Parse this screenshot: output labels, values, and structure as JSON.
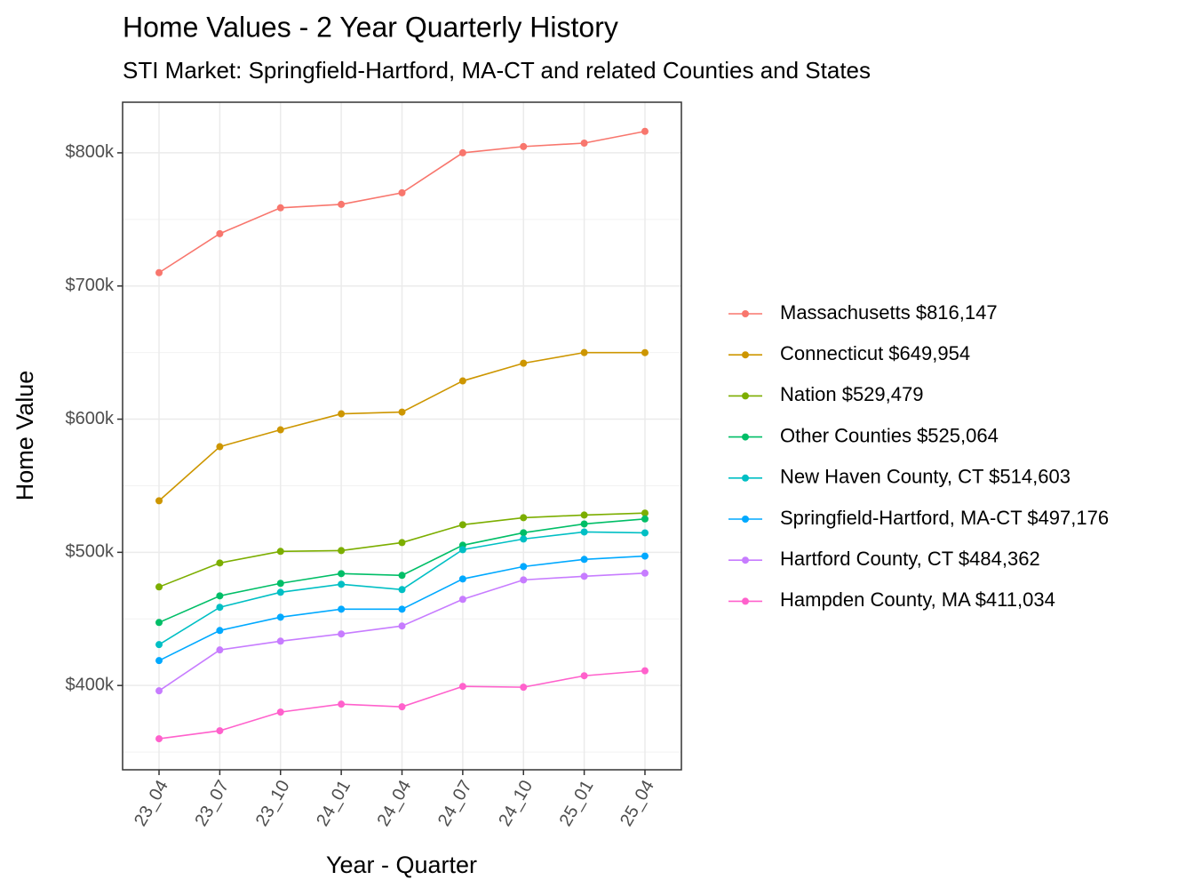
{
  "chart_data": {
    "type": "line",
    "title": "Home Values - 2 Year Quarterly History",
    "subtitle": "STI Market: Springfield-Hartford, MA-CT and related Counties and States",
    "x_label": "Year - Quarter",
    "y_label": "Home Value",
    "categories": [
      "23_04",
      "23_07",
      "23_10",
      "24_01",
      "24_04",
      "24_07",
      "24_10",
      "25_01",
      "25_04"
    ],
    "ylim": [
      336700,
      838000
    ],
    "yticks": [
      {
        "value": 400000,
        "label": "$400k"
      },
      {
        "value": 500000,
        "label": "$500k"
      },
      {
        "value": 600000,
        "label": "$600k"
      },
      {
        "value": 700000,
        "label": "$700k"
      },
      {
        "value": 800000,
        "label": "$800k"
      }
    ],
    "minor_yticks": [
      350000,
      450000,
      550000,
      650000,
      750000
    ],
    "grid": true,
    "legend": "right",
    "series": [
      {
        "name": "Massachusetts $816,147",
        "color": "#F8766D",
        "values": [
          710000,
          739300,
          758700,
          761300,
          770000,
          800000,
          804700,
          807300,
          816147
        ]
      },
      {
        "name": "Connecticut $649,954",
        "color": "#CD9600",
        "values": [
          538700,
          579300,
          592000,
          604000,
          605300,
          628700,
          642000,
          650000,
          649954
        ]
      },
      {
        "name": "Nation $529,479",
        "color": "#7CAE00",
        "values": [
          474000,
          492000,
          500700,
          501300,
          507300,
          520700,
          526000,
          528000,
          529479
        ]
      },
      {
        "name": "Other Counties $525,064",
        "color": "#00BE67",
        "values": [
          447300,
          467300,
          476700,
          484000,
          482700,
          505300,
          514700,
          521300,
          525064
        ]
      },
      {
        "name": "New Haven County, CT $514,603",
        "color": "#00BFC4",
        "values": [
          430700,
          458700,
          470000,
          476000,
          472000,
          502000,
          510000,
          515300,
          514603
        ]
      },
      {
        "name": "Springfield-Hartford, MA-CT $497,176",
        "color": "#00A9FF",
        "values": [
          418700,
          441300,
          451300,
          457300,
          457300,
          480000,
          489300,
          494700,
          497176
        ]
      },
      {
        "name": "Hartford County, CT $484,362",
        "color": "#C77CFF",
        "values": [
          396000,
          426700,
          433300,
          438700,
          444700,
          464700,
          479300,
          482000,
          484362
        ]
      },
      {
        "name": "Hampden County, MA $411,034",
        "color": "#FF61CC",
        "values": [
          360000,
          366000,
          380000,
          386000,
          384000,
          399300,
          398700,
          407300,
          411034
        ]
      }
    ]
  }
}
